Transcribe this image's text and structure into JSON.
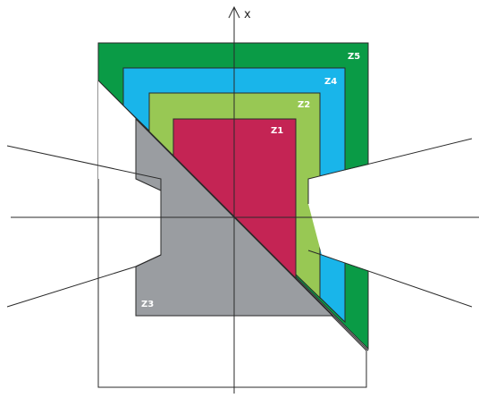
{
  "axis": {
    "x_label": "x"
  },
  "zones": [
    {
      "label": "Z1",
      "color": "#c42454"
    },
    {
      "label": "Z2",
      "color": "#98c854"
    },
    {
      "label": "Z3",
      "color": "#9a9da1"
    },
    {
      "label": "Z4",
      "color": "#19b5ea"
    },
    {
      "label": "Z5",
      "color": "#0a9b46"
    }
  ],
  "line_color": "#2a2a2a"
}
